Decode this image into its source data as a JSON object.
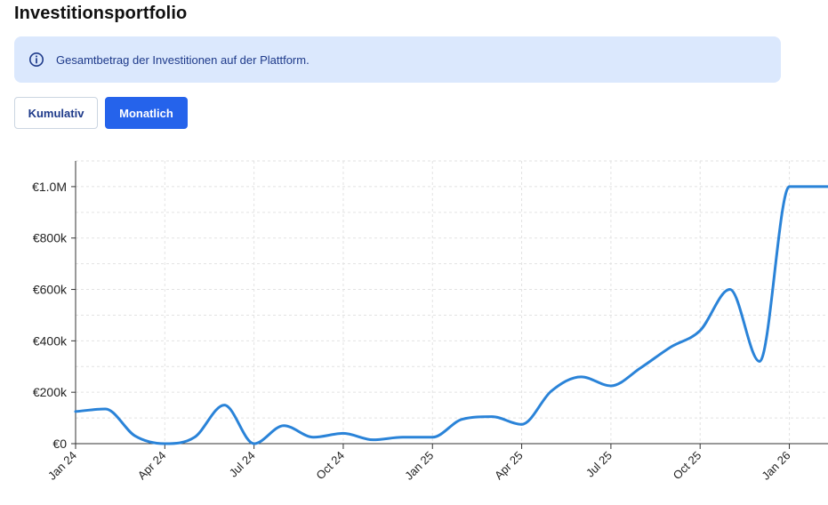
{
  "page": {
    "title": "Investitionsportfolio"
  },
  "info": {
    "text": "Gesamtbetrag der Investitionen auf der Plattform.",
    "icon": "info-icon"
  },
  "toggle": {
    "cumulative_label": "Kumulativ",
    "monthly_label": "Monatlich",
    "active": "Monatlich"
  },
  "colors": {
    "accent": "#2563eb",
    "line": "#2a83d8",
    "info_bg": "#dbe8fd",
    "info_text": "#1e3a8a"
  },
  "chart_data": {
    "type": "line",
    "title": "",
    "xlabel": "",
    "ylabel": "",
    "grid": true,
    "x_ticks": [
      "Jan 24",
      "Apr 24",
      "Jul 24",
      "Oct 24",
      "Jan 25",
      "Apr 25",
      "Jul 25",
      "Oct 25",
      "Jan 26"
    ],
    "y_ticks": [
      "€0",
      "€200k",
      "€400k",
      "€600k",
      "€800k",
      "€1.0M"
    ],
    "ylim": [
      0,
      1100000
    ],
    "xlim": [
      0,
      25.3
    ],
    "x_unit": "months since Jan 24",
    "series": [
      {
        "x": [
          0,
          1,
          2,
          3,
          4,
          5,
          6,
          7,
          8,
          9,
          10,
          11,
          12,
          13,
          14,
          15,
          16,
          17,
          18,
          19,
          20,
          21,
          22,
          23,
          24,
          25.3
        ],
        "values": [
          125000,
          135000,
          30000,
          0,
          25000,
          150000,
          0,
          70000,
          25000,
          40000,
          15000,
          25000,
          25000,
          95000,
          105000,
          75000,
          205000,
          260000,
          225000,
          295000,
          375000,
          440000,
          600000,
          320000,
          1000000,
          1000000
        ]
      }
    ]
  }
}
